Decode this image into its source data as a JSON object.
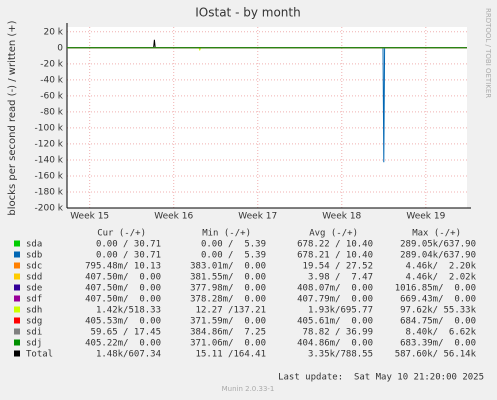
{
  "chart_data": {
    "type": "line",
    "title": "IOstat - by month",
    "y_label": "blocks per second read (-) / written (+)",
    "side_label": "RRDTOOL / TOBI OETIKER",
    "xlim": [
      14.73,
      19.49
    ],
    "xticks": [
      {
        "value": 15,
        "label": "Week 15"
      },
      {
        "value": 16,
        "label": "Week 16"
      },
      {
        "value": 17,
        "label": "Week 17"
      },
      {
        "value": 18,
        "label": "Week 18"
      },
      {
        "value": 19,
        "label": "Week 19"
      }
    ],
    "ylim": [
      -200000,
      26000
    ],
    "yticks": [
      {
        "value": 20000,
        "label": "20 k"
      },
      0,
      {
        "value": -20000,
        "label": "-20 k"
      },
      {
        "value": -40000,
        "label": "-40 k"
      },
      {
        "value": -60000,
        "label": "-60 k"
      },
      {
        "value": -80000,
        "label": "-80 k"
      },
      {
        "value": -100000,
        "label": "-100 k"
      },
      {
        "value": -120000,
        "label": "-120 k"
      },
      {
        "value": -140000,
        "label": "-140 k"
      },
      {
        "value": -160000,
        "label": "-160 k"
      },
      {
        "value": -180000,
        "label": "-180 k"
      },
      {
        "value": -200000,
        "label": "-200 k"
      }
    ],
    "grid": true,
    "x": [
      14.73,
      15.76,
      15.77,
      15.78,
      16.3,
      16.31,
      16.32,
      18.49,
      18.5,
      18.51,
      19.49
    ],
    "stats_header": [
      "Cur (-/+)",
      "Min (-/+)",
      "Avg (-/+)",
      "Max (-/+)"
    ],
    "series": [
      {
        "name": "sda",
        "color": "#00cc00",
        "values": [
          0,
          0,
          0,
          0,
          0,
          0,
          0,
          0,
          0,
          0,
          0
        ],
        "stats": [
          "0.00 / 30.71",
          "0.00 /  5.39",
          "678.22 / 10.40",
          "289.05k/637.90"
        ]
      },
      {
        "name": "sdb",
        "color": "#0066b3",
        "values": [
          0,
          0,
          0,
          0,
          0,
          0,
          0,
          0,
          -143000,
          0,
          0
        ],
        "stats": [
          "0.00 / 30.71",
          "0.00 /  5.39",
          "678.21 / 10.40",
          "289.04k/637.90"
        ]
      },
      {
        "name": "sdc",
        "color": "#ff8000",
        "values": [
          0,
          0,
          0,
          0,
          0,
          0,
          0,
          0,
          0,
          0,
          0
        ],
        "stats": [
          "795.48m/ 10.13",
          "383.01m/  0.00",
          "19.54 / 27.52",
          "4.46k/  2.20k"
        ]
      },
      {
        "name": "sdd",
        "color": "#ffcc00",
        "values": [
          0,
          0,
          0,
          0,
          0,
          0,
          0,
          0,
          0,
          0,
          0
        ],
        "stats": [
          "407.50m/  0.00",
          "381.55m/  0.00",
          "3.98 /  7.47",
          "4.46k/  2.02k"
        ]
      },
      {
        "name": "sde",
        "color": "#330099",
        "values": [
          0,
          0,
          0,
          0,
          0,
          0,
          0,
          0,
          0,
          0,
          0
        ],
        "stats": [
          "407.50m/  0.00",
          "377.98m/  0.00",
          "408.07m/  0.00",
          "1016.85m/  0.00"
        ]
      },
      {
        "name": "sdf",
        "color": "#990099",
        "values": [
          0,
          0,
          0,
          0,
          0,
          0,
          0,
          0,
          0,
          0,
          0
        ],
        "stats": [
          "407.50m/  0.00",
          "378.28m/  0.00",
          "407.79m/  0.00",
          "669.43m/  0.00"
        ]
      },
      {
        "name": "sdh",
        "color": "#ccff00",
        "values": [
          0,
          0,
          0,
          0,
          0,
          -2500,
          0,
          0,
          0,
          0,
          0
        ],
        "stats": [
          "1.42k/518.33",
          "12.27 /137.21",
          "1.93k/695.77",
          "97.62k/ 55.33k"
        ]
      },
      {
        "name": "sdg",
        "color": "#ff0000",
        "values": [
          0,
          0,
          0,
          0,
          0,
          0,
          0,
          0,
          0,
          0,
          0
        ],
        "stats": [
          "405.53m/  0.00",
          "371.59m/  0.00",
          "405.61m/  0.00",
          "684.75m/  0.00"
        ]
      },
      {
        "name": "sdi",
        "color": "#808080",
        "values": [
          0,
          0,
          0,
          0,
          0,
          0,
          0,
          0,
          0,
          0,
          0
        ],
        "stats": [
          "59.65 / 17.45",
          "384.86m/  7.25",
          "78.82 / 36.99",
          "8.40k/  6.62k"
        ]
      },
      {
        "name": "sdj",
        "color": "#008f00",
        "values": [
          0,
          0,
          0,
          0,
          0,
          0,
          0,
          0,
          0,
          0,
          0
        ],
        "stats": [
          "405.22m/  0.00",
          "371.06m/  0.00",
          "404.86m/  0.00",
          "683.39m/  0.00"
        ]
      },
      {
        "name": "Total",
        "color": "#000000",
        "values": [
          0,
          0,
          10000,
          0,
          0,
          0,
          0,
          0,
          0,
          0,
          0
        ],
        "stats": [
          "1.48k/607.34",
          "15.11 /164.41",
          "3.35k/788.55",
          "587.60k/ 56.14k"
        ]
      }
    ],
    "last_update": "Last update:  Sat May 10 21:20:00 2025",
    "footer": "Munin 2.0.33-1"
  }
}
